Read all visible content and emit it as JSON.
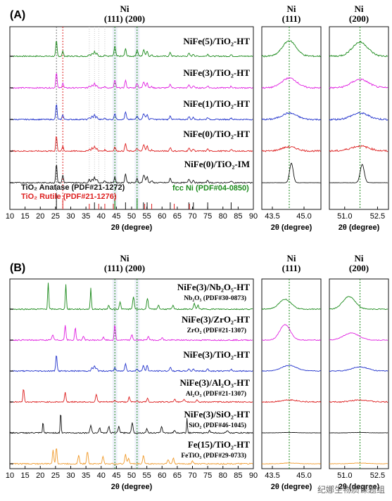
{
  "colors": {
    "green": "#1b8a1b",
    "magenta": "#e020e0",
    "blue": "#2233cc",
    "red": "#dd1f1f",
    "black": "#111111",
    "orange": "#f09a2b",
    "brown": "#8a3a2a"
  },
  "chart_data": [
    {
      "panel": "(A)",
      "type": "line",
      "header": {
        "metal": "Ni",
        "planes": "(111) (200)"
      },
      "xlabel": "2θ (degree)",
      "xlim": [
        10,
        90
      ],
      "xticks": [
        10,
        15,
        20,
        25,
        30,
        35,
        40,
        45,
        50,
        55,
        60,
        65,
        70,
        75,
        80,
        85,
        90
      ],
      "series": [
        {
          "name": "NiFe(5)/TiO₂-HT",
          "color": "green"
        },
        {
          "name": "NiFe(3)/TiO₂-HT",
          "color": "magenta"
        },
        {
          "name": "NiFe(1)/TiO₂-HT",
          "color": "blue"
        },
        {
          "name": "NiFe(0)/TiO₂-HT",
          "color": "red"
        },
        {
          "name": "NiFe(0)/TiO₂-IM",
          "color": "black"
        }
      ],
      "peaks_anatase": [
        25.3,
        37.8,
        48.0,
        53.9,
        55.1,
        62.7,
        68.8,
        70.3,
        75.0,
        82.7
      ],
      "peaks_rutile": [
        27.4,
        36.1,
        39.2,
        41.2,
        44.0,
        54.3,
        56.6,
        64.0,
        69.0
      ],
      "peaks_ni": [
        44.5,
        51.8
      ],
      "references": [
        "TiO₂ Anatase (PDF#21-1272)",
        "TiO₂ Rutile (PDF#21-1276)",
        "fcc Ni (PDF#04-0850)"
      ],
      "zooms": [
        {
          "header": "Ni",
          "sub": "(111)",
          "xlabel": "2θ (degree)",
          "xticks": [
            "43.5",
            "45.0"
          ],
          "xlim": [
            43,
            45.8
          ],
          "line": 44.3
        },
        {
          "header": "Ni",
          "sub": "(200)",
          "xlabel": "2θ (degree)",
          "xticks": [
            "51.0",
            "52.5"
          ],
          "xlim": [
            50.3,
            53
          ],
          "line": 51.7
        }
      ]
    },
    {
      "panel": "(B)",
      "type": "line",
      "header": {
        "metal": "Ni",
        "planes": "(111) (200)"
      },
      "xlabel": "2θ (degree)",
      "xlim": [
        10,
        90
      ],
      "xticks": [
        10,
        15,
        20,
        25,
        30,
        35,
        40,
        45,
        50,
        55,
        60,
        65,
        70,
        75,
        80,
        85,
        90
      ],
      "series": [
        {
          "name": "NiFe(3)/Nb₂O₅-HT",
          "ref": "Nb₂O₅ (PDF#30-0873)",
          "color": "green"
        },
        {
          "name": "NiFe(3)/ZrO₂-HT",
          "ref": "ZrO₂ (PDF#21-1307)",
          "color": "magenta"
        },
        {
          "name": "NiFe(3)/TiO₂-HT",
          "ref": "",
          "color": "blue"
        },
        {
          "name": "NiFe(3)/Al₂O₃-HT",
          "ref": "Al₂O₃ (PDF#21-1307)",
          "color": "red"
        },
        {
          "name": "NiFe(3)/SiO₂-HT",
          "ref": "SiO₂ (PDF#46-1045)",
          "color": "black"
        },
        {
          "name": "Fe(15)/TiO₂-HT",
          "ref": "FeTiO₃ (PDF#29-0733)",
          "color": "orange"
        }
      ],
      "zooms": [
        {
          "header": "Ni",
          "sub": "(111)",
          "xlabel": "2θ (degree)",
          "xticks": [
            "43.5",
            "45.0"
          ],
          "xlim": [
            43,
            45.8
          ],
          "line": 44.3
        },
        {
          "header": "Ni",
          "sub": "(200)",
          "xlabel": "2θ (degree)",
          "xticks": [
            "51.0",
            "52.5"
          ],
          "xlim": [
            50.3,
            53
          ],
          "line": 51.7
        }
      ]
    }
  ],
  "watermark": "纪娜生物质课题组"
}
